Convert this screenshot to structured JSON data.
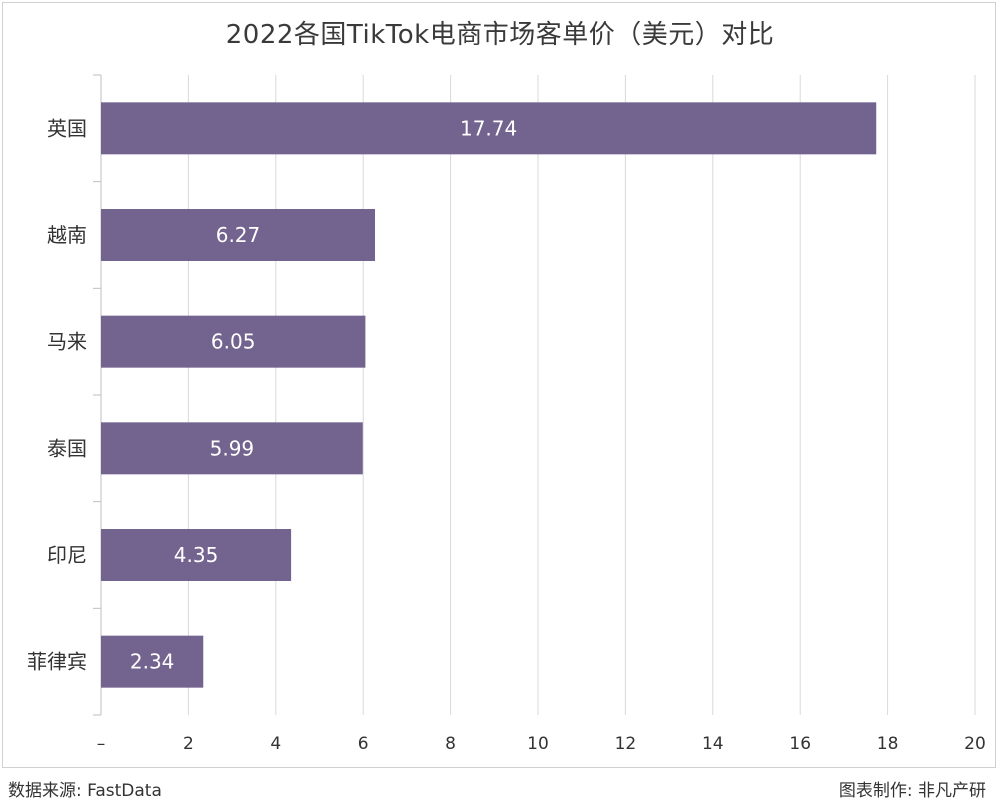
{
  "chart_data": {
    "type": "bar",
    "orientation": "horizontal",
    "title": "2022各国TikTok电商市场客单价（美元）对比",
    "categories": [
      "英国",
      "越南",
      "马来",
      "泰国",
      "印尼",
      "菲律宾"
    ],
    "values": [
      17.74,
      6.27,
      6.05,
      5.99,
      4.35,
      2.34
    ],
    "data_labels": [
      "17.74",
      "6.27",
      "6.05",
      "5.99",
      "4.35",
      "2.34"
    ],
    "xlim": [
      0,
      20
    ],
    "x_ticks": [
      0,
      2,
      4,
      6,
      8,
      10,
      12,
      14,
      16,
      18,
      20
    ],
    "x_tick_labels": [
      "–",
      "2",
      "4",
      "6",
      "8",
      "10",
      "12",
      "14",
      "16",
      "18",
      "20"
    ],
    "grid": "vertical",
    "legend": "none",
    "bar_color": "#73638f",
    "label_color": "#ffffff"
  },
  "footer": {
    "source": "数据来源: FastData",
    "credit": "图表制作: 非凡产研"
  }
}
